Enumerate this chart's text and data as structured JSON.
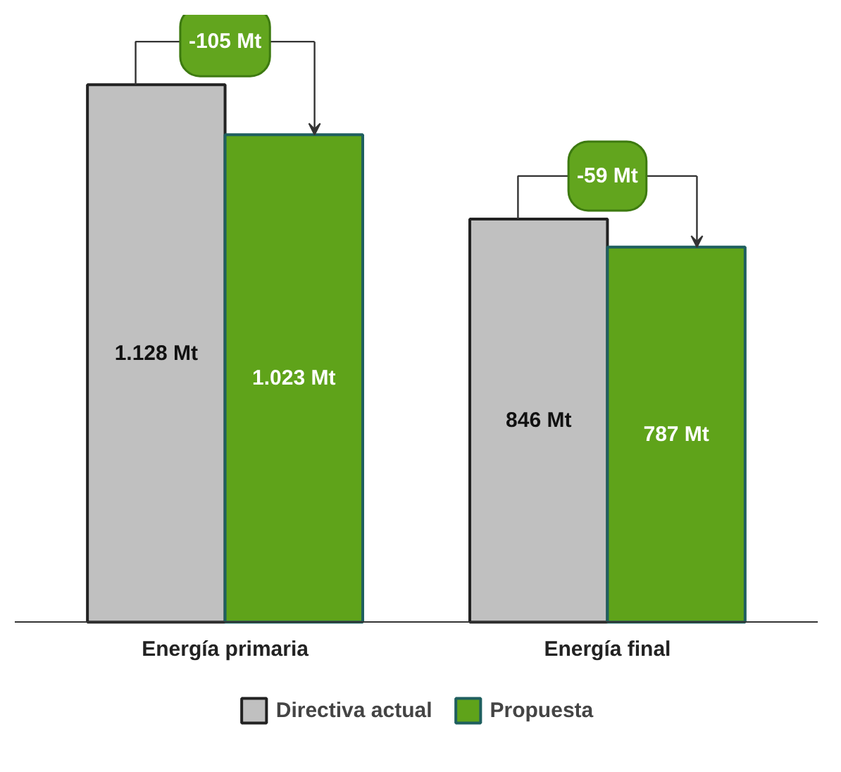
{
  "chart_data": {
    "type": "bar",
    "categories": [
      "Energía primaria",
      "Energía final"
    ],
    "series": [
      {
        "name": "Directiva actual",
        "color": "#c0c0c0",
        "values": [
          1128,
          846
        ],
        "value_labels": [
          "1.128 Mt",
          "846 Mt"
        ]
      },
      {
        "name": "Propuesta",
        "color": "#5fa31a",
        "values": [
          1023,
          787
        ],
        "value_labels": [
          "1.023 Mt",
          "787 Mt"
        ]
      }
    ],
    "annotations": [
      {
        "text": "-105 Mt",
        "x": "Energía primaria",
        "y": 1128
      },
      {
        "text": "-59 Mt",
        "x": "Energía final",
        "y": 846
      }
    ],
    "legend": "bottom",
    "grid": false
  }
}
